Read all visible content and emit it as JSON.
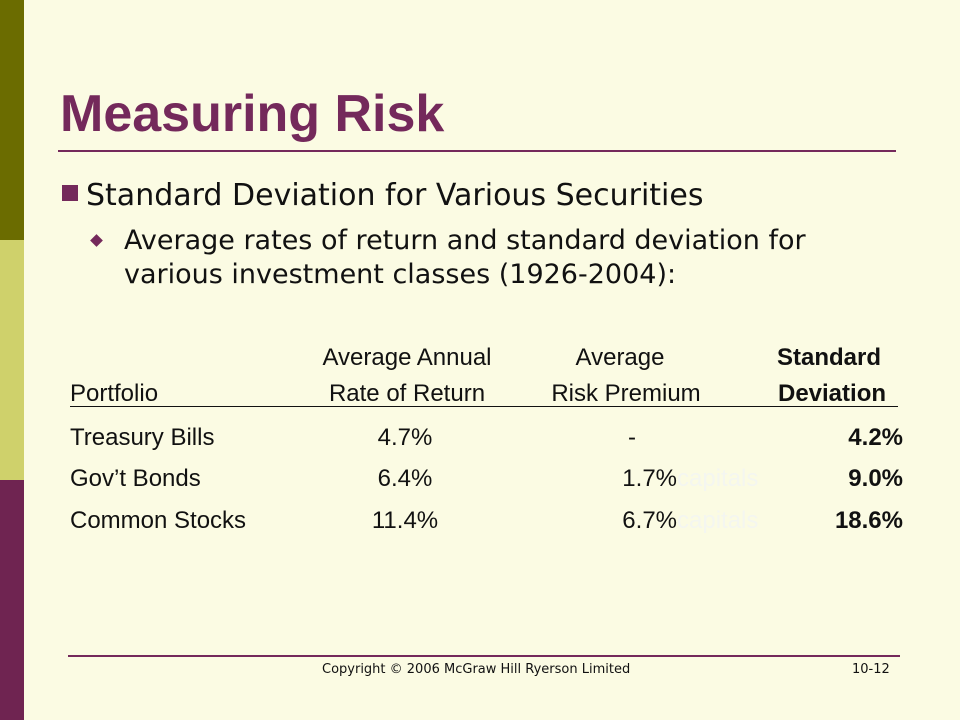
{
  "slide": {
    "title": "Measuring Risk",
    "bullet_level1": "Standard Deviation for Various Securities",
    "bullet_level2": "Average rates of return and standard deviation for various investment classes (1926-2004):"
  },
  "table": {
    "headers": {
      "portfolio": "Portfolio",
      "return_line1": "Average Annual",
      "return_line2": "Rate of Return",
      "premium_line1": "Average",
      "premium_line2": "Risk Premium",
      "sd_line1": "Standard",
      "sd_line2": "Deviation"
    },
    "rows": [
      {
        "portfolio": "Treasury Bills",
        "return": "4.7%",
        "premium": "-",
        "ghost": "",
        "sd": "4.2%"
      },
      {
        "portfolio": "Gov’t Bonds",
        "return": "6.4%",
        "premium": "1.7%",
        "ghost": "capitals",
        "sd": "9.0%"
      },
      {
        "portfolio": "Common Stocks",
        "return": "11.4%",
        "premium": "6.7%",
        "ghost": "capitals",
        "sd": "18.6%"
      }
    ]
  },
  "footer": {
    "copyright": "Copyright © 2006 McGraw Hill Ryerson Limited",
    "page": "10-12"
  },
  "colors": {
    "background": "#fbfbe3",
    "title": "#74295b",
    "sidebar_top": "#6b6c00",
    "sidebar_middle": "#cfd16b",
    "sidebar_bottom": "#6f2451"
  }
}
